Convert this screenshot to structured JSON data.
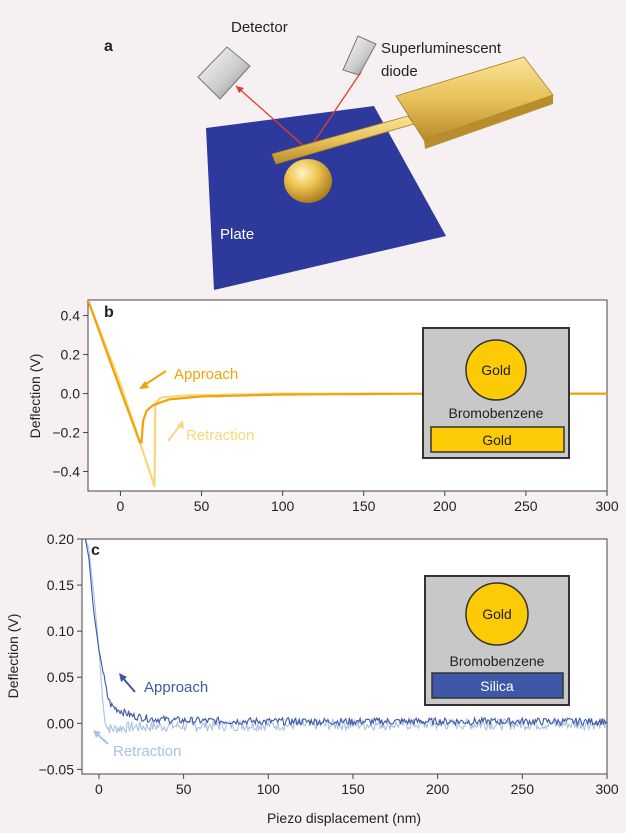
{
  "panel_a": {
    "letter": "a",
    "detector_label": "Detector",
    "diode_label_line1": "Superluminescent",
    "diode_label_line2": "diode",
    "plate_label": "Plate"
  },
  "panels": [
    {
      "letter": "b",
      "approach_label": "Approach",
      "retraction_label": "Retraction",
      "inset": {
        "sphere": "Gold",
        "medium": "Bromobenzene",
        "substrate": "Gold"
      }
    },
    {
      "letter": "c",
      "approach_label": "Approach",
      "retraction_label": "Retraction",
      "inset": {
        "sphere": "Gold",
        "medium": "Bromobenzene",
        "substrate": "Silica"
      }
    }
  ],
  "chart_data": [
    {
      "type": "line",
      "panel": "b",
      "ylabel": "Deflection (V)",
      "xlabel": "",
      "xlim": [
        -20,
        300
      ],
      "ylim": [
        -0.5,
        0.48
      ],
      "xticks": [
        0,
        50,
        100,
        150,
        200,
        250,
        300
      ],
      "yticks": [
        -0.4,
        -0.2,
        0.0,
        0.2,
        0.4
      ],
      "ytick_labels": [
        "−0.4",
        "−0.2",
        "0.0",
        "0.2",
        "0.4"
      ],
      "colors": {
        "approach": "#f0a30a",
        "retraction": "#f8d77a"
      },
      "series": [
        {
          "role": "retraction",
          "x": [
            -20,
            0,
            10,
            20,
            21,
            21.5,
            25,
            40,
            100,
            200,
            300
          ],
          "y": [
            0.48,
            0.05,
            -0.2,
            -0.45,
            -0.48,
            -0.05,
            -0.02,
            -0.01,
            0.0,
            0.0,
            0.0
          ]
        },
        {
          "role": "approach",
          "x": [
            -20,
            0,
            8,
            12,
            13,
            14,
            16,
            20,
            30,
            50,
            100,
            200,
            300
          ],
          "y": [
            0.48,
            0.02,
            -0.16,
            -0.25,
            -0.25,
            -0.14,
            -0.09,
            -0.06,
            -0.03,
            -0.015,
            -0.005,
            0.0,
            0.0
          ]
        }
      ]
    },
    {
      "type": "line",
      "panel": "c",
      "ylabel": "Deflection (V)",
      "xlabel": "Piezo displacement (nm)",
      "xlim": [
        -10,
        300
      ],
      "ylim": [
        -0.055,
        0.2
      ],
      "xticks": [
        0,
        50,
        100,
        150,
        200,
        250,
        300
      ],
      "yticks": [
        -0.05,
        0.0,
        0.05,
        0.1,
        0.15,
        0.2
      ],
      "ytick_labels": [
        "−0.05",
        "0.00",
        "0.05",
        "0.10",
        "0.15",
        "0.20"
      ],
      "colors": {
        "approach": "#3e58a8",
        "retraction": "#aac1e3"
      },
      "series": [
        {
          "role": "retraction",
          "x": [
            -8,
            -6,
            -3,
            0,
            2,
            3,
            5,
            8,
            12,
            20,
            40,
            100,
            200,
            300
          ],
          "y": [
            0.2,
            0.19,
            0.14,
            0.08,
            0.03,
            0.01,
            -0.005,
            -0.006,
            -0.005,
            -0.004,
            -0.003,
            -0.002,
            -0.001,
            -0.001
          ]
        },
        {
          "role": "approach",
          "x": [
            -8,
            -6,
            -3,
            0,
            3,
            5,
            7,
            10,
            15,
            20,
            30,
            50,
            100,
            200,
            300
          ],
          "y": [
            0.2,
            0.18,
            0.12,
            0.08,
            0.05,
            0.03,
            0.02,
            0.016,
            0.012,
            0.008,
            0.005,
            0.003,
            0.002,
            0.002,
            0.002
          ]
        }
      ]
    }
  ]
}
